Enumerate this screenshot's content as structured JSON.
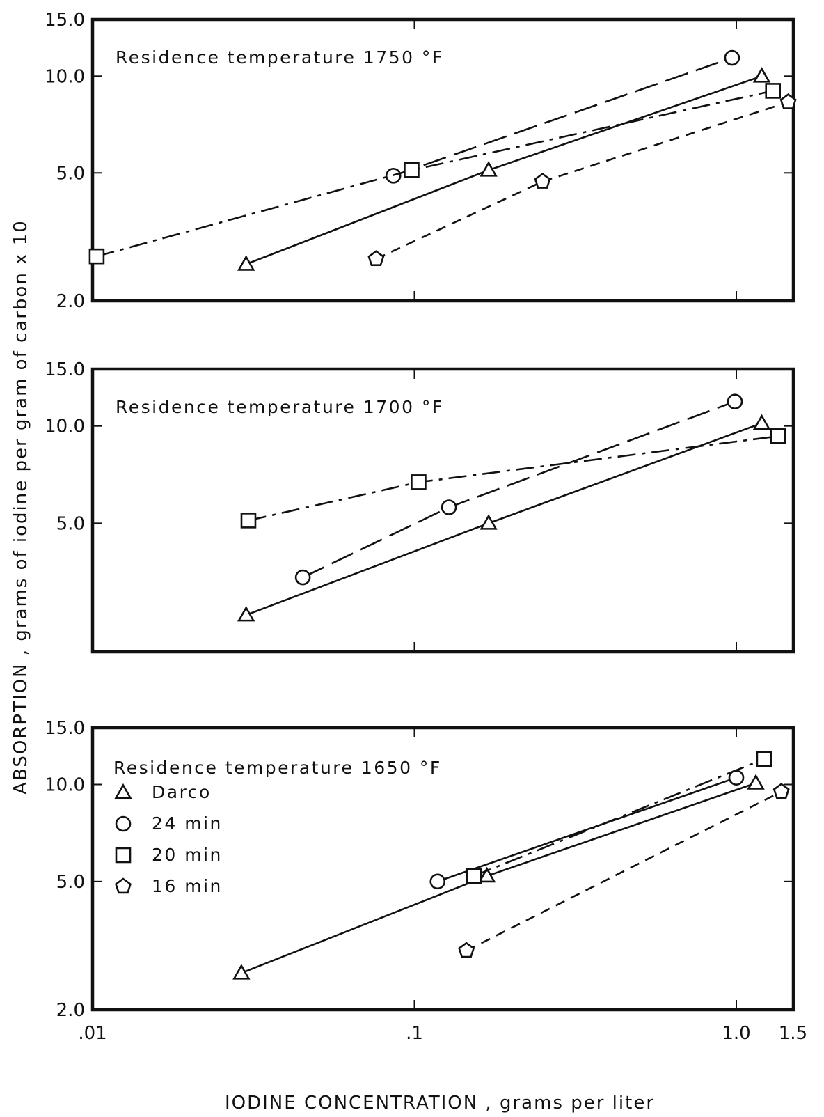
{
  "chart_data": [
    {
      "type": "line",
      "title": "Residence temperature 1750 °F",
      "x_scale": "log",
      "y_scale": "log",
      "xlim": [
        0.01,
        1.5
      ],
      "ylim": [
        2.0,
        15.0
      ],
      "y_ticks": [
        "15.0",
        "10.0",
        "5.0",
        "2.0"
      ],
      "series": [
        {
          "name": "Darco",
          "marker": "triangle",
          "line": "solid",
          "points": [
            [
              0.03,
              2.6
            ],
            [
              0.17,
              5.1
            ],
            [
              1.2,
              10.0
            ]
          ]
        },
        {
          "name": "24 min",
          "marker": "circle",
          "line": "long-dash",
          "points": [
            [
              0.086,
              4.9
            ],
            [
              0.97,
              11.4
            ]
          ]
        },
        {
          "name": "20 min",
          "marker": "square",
          "line": "dash-dot",
          "points": [
            [
              0.0103,
              2.75
            ],
            [
              0.098,
              5.1
            ],
            [
              1.3,
              9.0
            ]
          ]
        },
        {
          "name": "16 min",
          "marker": "pentagon",
          "line": "short-dash",
          "points": [
            [
              0.076,
              2.7
            ],
            [
              0.25,
              4.7
            ],
            [
              1.45,
              8.3
            ]
          ]
        }
      ]
    },
    {
      "type": "line",
      "title": "Residence temperature 1700 °F",
      "x_scale": "log",
      "y_scale": "log",
      "xlim": [
        0.01,
        1.5
      ],
      "ylim": [
        2.0,
        15.0
      ],
      "y_ticks": [
        "15.0",
        "10.0",
        "5.0"
      ],
      "series": [
        {
          "name": "Darco",
          "marker": "triangle",
          "line": "solid",
          "points": [
            [
              0.03,
              2.6
            ],
            [
              0.17,
              5.0
            ],
            [
              1.2,
              10.2
            ]
          ]
        },
        {
          "name": "24 min",
          "marker": "circle",
          "line": "long-dash",
          "points": [
            [
              0.045,
              3.4
            ],
            [
              0.128,
              5.6
            ],
            [
              0.99,
              11.9
            ]
          ]
        },
        {
          "name": "20 min",
          "marker": "square",
          "line": "dash-dot",
          "points": [
            [
              0.0305,
              5.1
            ],
            [
              0.103,
              6.7
            ],
            [
              1.35,
              9.3
            ]
          ]
        }
      ]
    },
    {
      "type": "line",
      "title": "Residence temperature 1650 °F",
      "x_scale": "log",
      "y_scale": "log",
      "xlim": [
        0.01,
        1.5
      ],
      "ylim": [
        2.0,
        15.0
      ],
      "y_ticks": [
        "15.0",
        "10.0",
        "5.0",
        "2.0"
      ],
      "x_ticks": [
        ".01",
        ".1",
        "1.0",
        "1.5"
      ],
      "series": [
        {
          "name": "Darco",
          "marker": "triangle",
          "line": "solid",
          "points": [
            [
              0.029,
              2.6
            ],
            [
              0.168,
              5.2
            ],
            [
              1.15,
              10.1
            ]
          ]
        },
        {
          "name": "24 min",
          "marker": "circle",
          "line": "solid",
          "points": [
            [
              0.118,
              5.0
            ],
            [
              1.0,
              10.5
            ]
          ]
        },
        {
          "name": "20 min",
          "marker": "square",
          "line": "dash-dot",
          "points": [
            [
              0.153,
              5.2
            ],
            [
              1.22,
              12.0
            ]
          ]
        },
        {
          "name": "16 min",
          "marker": "pentagon",
          "line": "short-dash",
          "points": [
            [
              0.145,
              3.05
            ],
            [
              1.38,
              9.5
            ]
          ]
        }
      ]
    }
  ],
  "legend": {
    "placement": "inside bottom panel, upper-left",
    "items": [
      {
        "marker": "triangle",
        "label": "Darco"
      },
      {
        "marker": "circle",
        "label": "24 min"
      },
      {
        "marker": "square",
        "label": "20 min"
      },
      {
        "marker": "pentagon",
        "label": "16 min"
      }
    ]
  },
  "axes": {
    "ylabel": "ABSORPTION , grams of iodine per gram of carbon x 10",
    "xlabel_main": "IODINE CONCENTRATION",
    "xlabel_sep": " , ",
    "xlabel_unit": "grams per liter"
  }
}
